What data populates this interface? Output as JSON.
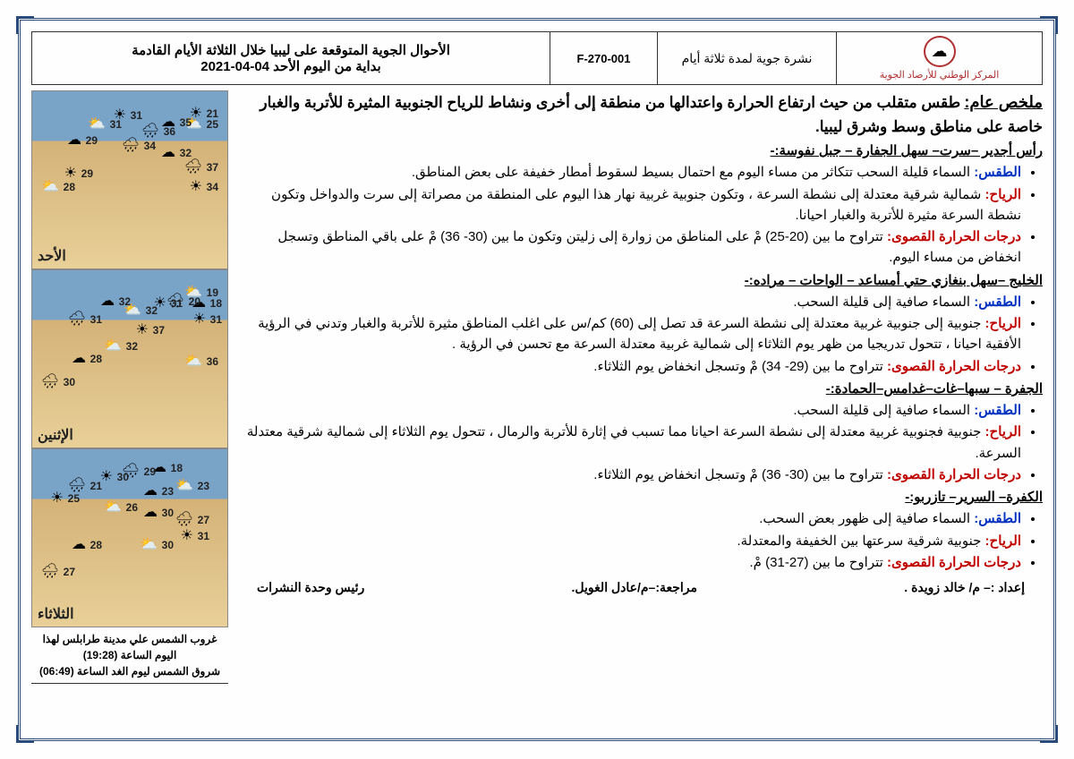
{
  "header": {
    "org_name": "المركز الوطني للأرصاد الجوية",
    "bulletin_type": "نشرة جوية لمدة ثلاثة أيام",
    "form_code": "F-270-001",
    "title_line1": "الأحوال الجوية المتوقعة على ليبيا خلال الثلاثة الأيام القادمة",
    "title_line2": "بداية من اليوم الأحد 04-04-2021"
  },
  "summary": {
    "label": "ملخص عام:",
    "text": "طقس متقلب من حيث ارتفاع الحرارة واعتدالها من منطقة إلى أخرى ونشاط  للرياح الجنوبية المثيرة للأتربة والغبار خاصة على مناطق وسط وشرق ليبيا."
  },
  "regions": [
    {
      "name": "رأس أجدير –سرت– سهل الجفارة – جبل نفوسة:-",
      "weather": "السماء قليلة السحب تتكاثر من مساء اليوم مع احتمال بسيط  لسقوط أمطار خفيفة على بعض المناطق.",
      "wind": "شمالية شرقية معتدلة إلى نشطة السرعة ، وتكون جنوبية غربية نهار هذا اليوم على المنطقة من مصراتة إلى سرت والدواخل وتكون نشطة السرعة  مثيرة للأتربة والغبار احيانا.",
      "temp": "تتراوح ما بين (20-25) مْ على المناطق من زوارة إلى زليتن وتكون ما بين (30- 36) مْ على باقي المناطق وتسجل انخفاض من مساء اليوم."
    },
    {
      "name": "الخليج –سهل بنغازي حتي أمساعد – الواحات – مراده:-",
      "weather": "السماء صافية إلى قليلة السحب.",
      "wind": "جنوبية إلى جنوبية غربية معتدلة إلى نشطة السرعة قد تصل إلى (60) كم/س على اغلب المناطق مثيرة للأتربة والغبار وتدني في الرؤية الأفقية احيانا ، تتحول تدريجيا من ظهر يوم الثلاثاء إلى شمالية غربية معتدلة السرعة مع تحسن في الرؤية .",
      "temp": "تتراوح ما بين (29- 34) مْ وتسجل انخفاض يوم الثلاثاء."
    },
    {
      "name": "الجفرة – سبها–غات–غدامس–الحمادة:-",
      "weather": "السماء صافية إلى قليلة السحب.",
      "wind": "جنوبية فجنوبية غربية معتدلة  إلى نشطة السرعة  احيانا مما تسبب في إثارة للأتربة والرمال ، تتحول يوم الثلاثاء إلى شمالية شرقية معتدلة السرعة.",
      "temp": "تتراوح ما بين (30- 36) مْ وتسجل انخفاض يوم الثلاثاء."
    },
    {
      "name": "الكفرة– السرير– تازربو:-",
      "weather": "السماء صافية إلى ظهور بعض السحب.",
      "wind": "جنوبية شرقية سرعتها بين الخفيفة والمعتدلة.",
      "temp": "تتراوح ما بين (27-31) مْ."
    }
  ],
  "labels": {
    "weather": "الطقس:",
    "wind": "الرياح:",
    "temp": "درجات الحرارة القصوى:"
  },
  "maps": [
    {
      "day": "الأحد",
      "temps": [
        {
          "v": "21",
          "t": 18,
          "r": 10
        },
        {
          "v": "25",
          "t": 30,
          "r": 10
        },
        {
          "v": "35",
          "t": 28,
          "r": 40
        },
        {
          "v": "36",
          "t": 38,
          "r": 58
        },
        {
          "v": "31",
          "t": 20,
          "r": 95
        },
        {
          "v": "31",
          "t": 30,
          "r": 118
        },
        {
          "v": "29",
          "t": 48,
          "r": 145
        },
        {
          "v": "34",
          "t": 54,
          "r": 80
        },
        {
          "v": "29",
          "t": 85,
          "r": 150
        },
        {
          "v": "28",
          "t": 100,
          "r": 170
        },
        {
          "v": "32",
          "t": 62,
          "r": 40
        },
        {
          "v": "37",
          "t": 78,
          "r": 10
        },
        {
          "v": "34",
          "t": 100,
          "r": 10
        }
      ]
    },
    {
      "day": "الإثنين",
      "temps": [
        {
          "v": "19",
          "t": 18,
          "r": 10
        },
        {
          "v": "18",
          "t": 30,
          "r": 6
        },
        {
          "v": "20",
          "t": 28,
          "r": 30
        },
        {
          "v": "31",
          "t": 30,
          "r": 50
        },
        {
          "v": "32",
          "t": 38,
          "r": 78
        },
        {
          "v": "32",
          "t": 28,
          "r": 108
        },
        {
          "v": "31",
          "t": 48,
          "r": 140
        },
        {
          "v": "37",
          "t": 60,
          "r": 70
        },
        {
          "v": "32",
          "t": 78,
          "r": 100
        },
        {
          "v": "28",
          "t": 92,
          "r": 140
        },
        {
          "v": "30",
          "t": 118,
          "r": 170
        },
        {
          "v": "31",
          "t": 48,
          "r": 6
        },
        {
          "v": "36",
          "t": 95,
          "r": 10
        }
      ]
    },
    {
      "day": "الثلاثاء",
      "temps": [
        {
          "v": "18",
          "t": 14,
          "r": 50
        },
        {
          "v": "29",
          "t": 18,
          "r": 80
        },
        {
          "v": "30",
          "t": 24,
          "r": 110
        },
        {
          "v": "23",
          "t": 34,
          "r": 20
        },
        {
          "v": "23",
          "t": 40,
          "r": 60
        },
        {
          "v": "21",
          "t": 34,
          "r": 140
        },
        {
          "v": "25",
          "t": 48,
          "r": 165
        },
        {
          "v": "26",
          "t": 58,
          "r": 100
        },
        {
          "v": "30",
          "t": 64,
          "r": 60
        },
        {
          "v": "27",
          "t": 72,
          "r": 20
        },
        {
          "v": "31",
          "t": 90,
          "r": 20
        },
        {
          "v": "30",
          "t": 100,
          "r": 60
        },
        {
          "v": "28",
          "t": 100,
          "r": 140
        },
        {
          "v": "27",
          "t": 130,
          "r": 170
        }
      ]
    }
  ],
  "sun": {
    "sunset": "غروب الشمس علي مدينة طرابلس لهذا اليوم الساعة (19:28)",
    "sunrise": "شروق الشمس ليوم الغد الساعة (06:49)"
  },
  "footer": {
    "prepared": "إعداد :– م/ خالد زويدة .",
    "reviewed": "مراجعة:–م/عادل الغويل.",
    "head": "رئيس وحدة النشرات"
  },
  "colors": {
    "frame": "#2a4a7a",
    "red": "#c00000",
    "blue": "#0030c0"
  }
}
